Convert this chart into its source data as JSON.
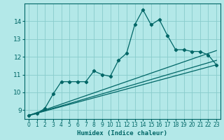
{
  "title": "",
  "xlabel": "Humidex (Indice chaleur)",
  "bg_color": "#b3e8e8",
  "grid_color": "#88cccc",
  "line_color": "#006666",
  "xlim": [
    -0.5,
    23.5
  ],
  "ylim": [
    8.5,
    15.0
  ],
  "yticks": [
    9,
    10,
    11,
    12,
    13,
    14
  ],
  "xticks": [
    0,
    1,
    2,
    3,
    4,
    5,
    6,
    7,
    8,
    9,
    10,
    11,
    12,
    13,
    14,
    15,
    16,
    17,
    18,
    19,
    20,
    21,
    22,
    23
  ],
  "series_main": {
    "x": [
      0,
      1,
      2,
      3,
      4,
      5,
      6,
      7,
      8,
      9,
      10,
      11,
      12,
      13,
      14,
      15,
      16,
      17,
      18,
      19,
      20,
      21,
      22,
      23
    ],
    "y": [
      8.7,
      8.8,
      9.1,
      9.9,
      10.6,
      10.6,
      10.6,
      10.6,
      11.2,
      11.0,
      10.9,
      11.8,
      12.2,
      13.8,
      14.65,
      13.8,
      14.1,
      13.2,
      12.4,
      12.4,
      12.3,
      12.3,
      12.1,
      11.55
    ]
  },
  "series_linear1": {
    "x": [
      0,
      23
    ],
    "y": [
      8.7,
      12.35
    ]
  },
  "series_linear2": {
    "x": [
      0,
      23
    ],
    "y": [
      8.7,
      11.8
    ]
  },
  "series_linear3": {
    "x": [
      0,
      23
    ],
    "y": [
      8.7,
      11.55
    ]
  }
}
